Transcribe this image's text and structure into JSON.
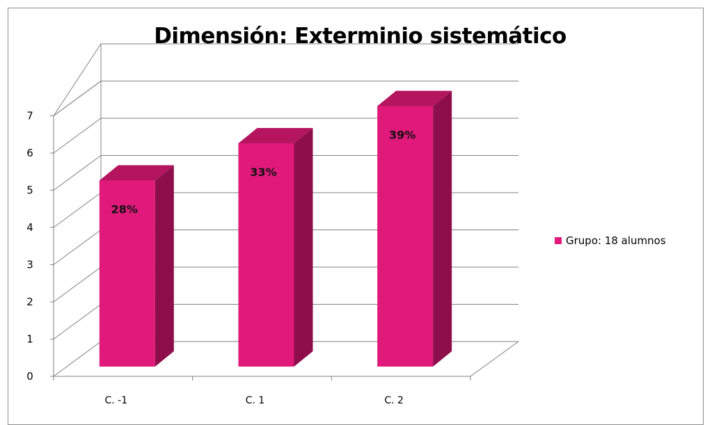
{
  "chart_data": {
    "type": "bar",
    "title": "Dimensión: Exterminio sistemático",
    "categories": [
      "C. -1",
      "C. 1",
      "C. 2"
    ],
    "series": [
      {
        "name": "Grupo: 18 alumnos",
        "values": [
          5,
          6,
          7
        ],
        "data_labels": [
          "28%",
          "33%",
          "39%"
        ]
      }
    ],
    "ylim": [
      0,
      7
    ],
    "y_ticks": [
      "0",
      "1",
      "2",
      "3",
      "4",
      "5",
      "6",
      "7"
    ],
    "grid": true,
    "legend_position": "right",
    "colors": {
      "bar_front": "#e0197a",
      "bar_side": "#8e0e4b",
      "bar_top": "#b5145f"
    }
  }
}
